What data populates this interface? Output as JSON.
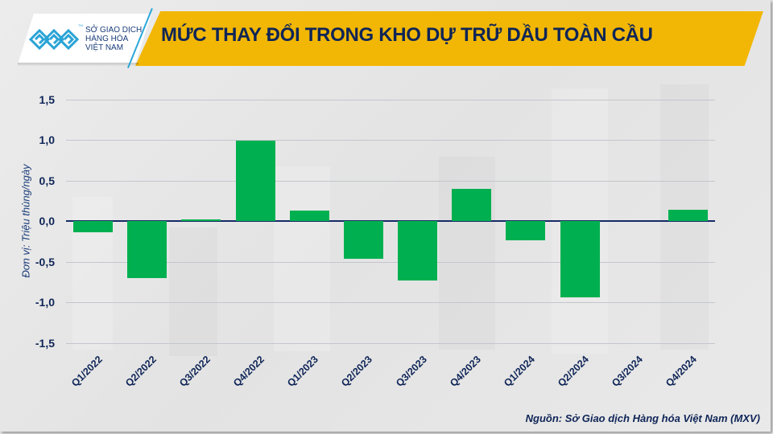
{
  "header": {
    "logo": {
      "icon": "mxv-logo-icon",
      "tm": "TM",
      "lines": [
        "SỞ GIAO DỊCH",
        "HÀNG HÓA",
        "VIỆT NAM"
      ]
    },
    "title": "MỨC THAY ĐỔI TRONG KHO DỰ TRỮ DẦU TOÀN CẦU"
  },
  "colors": {
    "title_band": "#f2b705",
    "title_text": "#0f2557",
    "bar": "#00b050",
    "zero_line": "#152a66",
    "logo_blue": "#29a3d6"
  },
  "chart_data": {
    "type": "bar",
    "title": "MỨC THAY ĐỔI TRONG KHO DỰ TRỮ DẦU TOÀN CẦU",
    "xlabel": "",
    "ylabel": "Đơn vị: Triệu thùng/ngày",
    "categories": [
      "Q1/2022",
      "Q2/2022",
      "Q3/2022",
      "Q4/2022",
      "Q1/2023",
      "Q2/2023",
      "Q3/2023",
      "Q4/2023",
      "Q1/2024",
      "Q2/2024",
      "Q3/2024",
      "Q4/2024"
    ],
    "values": [
      -0.14,
      -0.7,
      0.02,
      0.99,
      0.13,
      -0.47,
      -0.73,
      0.4,
      -0.24,
      -0.94,
      0.0,
      0.14
    ],
    "ylim": [
      -1.5,
      1.5
    ],
    "yticks": [
      "1,5",
      "1,0",
      "0,5",
      "0,0",
      "-0,5",
      "-1,0",
      "-1,5"
    ],
    "ytick_values": [
      1.5,
      1.0,
      0.5,
      0.0,
      -0.5,
      -1.0,
      -1.5
    ],
    "grid": true,
    "legend": null
  },
  "footer": {
    "source": "Nguồn: Sở Giao dịch Hàng hóa Việt Nam (MXV)"
  }
}
